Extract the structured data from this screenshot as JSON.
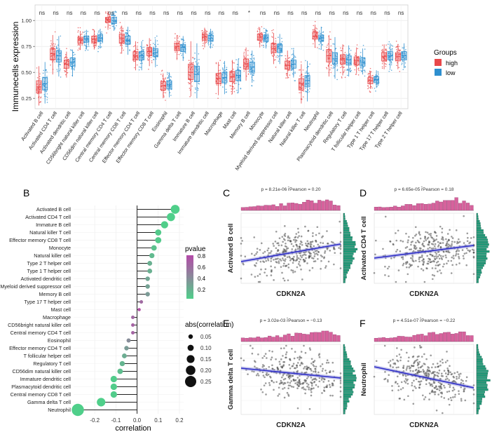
{
  "panel_labels": [
    "A",
    "B",
    "C",
    "D",
    "E",
    "F"
  ],
  "colors": {
    "high": "#e8484a",
    "low": "#2e8fcf",
    "trend": "#2b2bc8",
    "hist_top": "#d6629c",
    "hist_side": "#1f9a78",
    "point": "#4a4a4a"
  },
  "chart_data": [
    {
      "id": "A",
      "type": "box",
      "ylabel": "Immunecells expression",
      "ylim": [
        0.15,
        1.15
      ],
      "yticks": [
        0.25,
        0.5,
        0.75,
        1.0
      ],
      "ytick_labels": [
        "0.25",
        "0.50",
        "0.75",
        "1.00"
      ],
      "grid": true,
      "legend": {
        "title": "Groups",
        "entries": [
          "high",
          "low"
        ],
        "placement": "right"
      },
      "categories": [
        "Activated B cell",
        "Activated CD4 T cell",
        "Activated dendritic cell",
        "CD56bright natural killer cell",
        "CD56dim natural killer cell",
        "Central memory CD4 T cell",
        "Central memory CD8 T cell",
        "Effector memory CD4 T cell",
        "Effector memory CD8 T cell",
        "Eosinophil",
        "Gamma delta T cell",
        "Immature B cell",
        "Immature dendritic cell",
        "Macrophage",
        "Mast cell",
        "Memory B cell",
        "Monocyte",
        "Myeloid derived suppressor cell",
        "Natural killer cell",
        "Natural killer T cell",
        "Neutrophil",
        "Plasmacytoid dendritic cell",
        "Regulatory T cell",
        "T follicular helper cell",
        "Type 1 T helper cell",
        "Type 17 T helper cell",
        "Type 2 T helper cell"
      ],
      "significance": [
        "ns",
        "ns",
        "ns",
        "ns",
        "ns",
        "ns",
        "ns",
        "ns",
        "ns",
        "ns",
        "ns",
        "ns",
        "ns",
        "ns",
        "ns",
        "*",
        "ns",
        "ns",
        "ns",
        "ns",
        "ns",
        "ns",
        "ns",
        "ns",
        "ns",
        "ns",
        "ns"
      ],
      "series": [
        {
          "name": "high",
          "medians": [
            0.36,
            0.68,
            0.58,
            0.81,
            0.82,
            1.01,
            0.83,
            0.66,
            0.7,
            0.37,
            0.75,
            0.5,
            0.84,
            0.44,
            0.46,
            0.58,
            0.84,
            0.73,
            0.57,
            0.39,
            0.85,
            0.66,
            0.63,
            0.61,
            0.42,
            0.65,
            0.65
          ],
          "q1": [
            0.3,
            0.62,
            0.54,
            0.78,
            0.79,
            0.98,
            0.78,
            0.62,
            0.66,
            0.33,
            0.71,
            0.43,
            0.81,
            0.39,
            0.41,
            0.53,
            0.81,
            0.69,
            0.53,
            0.33,
            0.82,
            0.6,
            0.58,
            0.57,
            0.39,
            0.61,
            0.61
          ],
          "q3": [
            0.42,
            0.73,
            0.62,
            0.84,
            0.85,
            1.03,
            0.87,
            0.7,
            0.74,
            0.41,
            0.78,
            0.58,
            0.87,
            0.49,
            0.51,
            0.63,
            0.87,
            0.78,
            0.61,
            0.44,
            0.89,
            0.72,
            0.67,
            0.65,
            0.45,
            0.69,
            0.69
          ],
          "whisker_low": [
            0.18,
            0.48,
            0.45,
            0.72,
            0.72,
            0.91,
            0.68,
            0.52,
            0.56,
            0.25,
            0.62,
            0.27,
            0.74,
            0.28,
            0.29,
            0.42,
            0.74,
            0.58,
            0.44,
            0.2,
            0.74,
            0.46,
            0.47,
            0.49,
            0.34,
            0.53,
            0.53
          ],
          "whisker_high": [
            0.56,
            0.86,
            0.7,
            0.9,
            0.91,
            1.09,
            0.95,
            0.8,
            0.83,
            0.49,
            0.86,
            0.8,
            0.93,
            0.6,
            0.62,
            0.74,
            0.93,
            0.88,
            0.71,
            0.58,
            0.96,
            0.86,
            0.77,
            0.74,
            0.51,
            0.77,
            0.77
          ]
        },
        {
          "name": "low",
          "medians": [
            0.39,
            0.66,
            0.6,
            0.82,
            0.83,
            1.0,
            0.81,
            0.66,
            0.69,
            0.38,
            0.74,
            0.48,
            0.83,
            0.45,
            0.47,
            0.55,
            0.83,
            0.73,
            0.58,
            0.42,
            0.83,
            0.63,
            0.62,
            0.6,
            0.43,
            0.66,
            0.66
          ],
          "q1": [
            0.33,
            0.6,
            0.56,
            0.79,
            0.8,
            0.97,
            0.77,
            0.62,
            0.65,
            0.34,
            0.7,
            0.41,
            0.8,
            0.4,
            0.42,
            0.5,
            0.8,
            0.69,
            0.54,
            0.36,
            0.8,
            0.58,
            0.57,
            0.56,
            0.4,
            0.62,
            0.62
          ],
          "q3": [
            0.45,
            0.71,
            0.64,
            0.85,
            0.86,
            1.03,
            0.85,
            0.7,
            0.73,
            0.42,
            0.77,
            0.56,
            0.86,
            0.5,
            0.52,
            0.6,
            0.86,
            0.77,
            0.62,
            0.47,
            0.86,
            0.69,
            0.66,
            0.64,
            0.46,
            0.7,
            0.7
          ],
          "whisker_low": [
            0.2,
            0.46,
            0.46,
            0.72,
            0.73,
            0.9,
            0.67,
            0.52,
            0.55,
            0.26,
            0.61,
            0.25,
            0.73,
            0.29,
            0.3,
            0.4,
            0.73,
            0.58,
            0.45,
            0.22,
            0.72,
            0.44,
            0.46,
            0.48,
            0.35,
            0.54,
            0.54
          ],
          "whisker_high": [
            0.6,
            0.85,
            0.72,
            0.91,
            0.92,
            1.09,
            0.94,
            0.8,
            0.82,
            0.5,
            0.85,
            0.78,
            0.92,
            0.61,
            0.63,
            0.71,
            0.92,
            0.87,
            0.72,
            0.61,
            0.94,
            0.84,
            0.76,
            0.73,
            0.52,
            0.78,
            0.78
          ]
        }
      ]
    },
    {
      "id": "B",
      "type": "lollipop",
      "xlabel": "correlation",
      "xlim": [
        -0.3,
        0.22
      ],
      "xticks": [
        -0.2,
        -0.1,
        0.0,
        0.1,
        0.2
      ],
      "xtick_labels": [
        "-0.2",
        "-0.1",
        "0.0",
        "0.1",
        "0.2"
      ],
      "categories": [
        "Activated B cell",
        "Activated CD4 T cell",
        "Immature  B cell",
        "Natural killer T cell",
        "Effector memory CD8 T cell",
        "Monocyte",
        "Natural killer cell",
        "Type 2 T helper cell",
        "Type 1 T helper cell",
        "Activated dendritic cell",
        "Myeloid derived suppressor cell",
        "Memory B cell",
        "Type 17 T helper cell",
        "Mast cell",
        "Macrophage",
        "CD56bright natural killer cell",
        "Central memory CD4 T cell",
        "Eosinophil",
        "Effector memory CD4 T cell",
        "T follicular helper cell",
        "Regulatory T cell",
        "CD56dim natural killer cell",
        "Immature dendritic cell",
        "Plasmacytoid dendritic cell",
        "Central memory CD8 T cell",
        "Gamma delta T cell",
        "Neutrophil"
      ],
      "values": [
        0.18,
        0.16,
        0.13,
        0.1,
        0.1,
        0.08,
        0.07,
        0.06,
        0.06,
        0.05,
        0.05,
        0.05,
        0.02,
        0.01,
        -0.02,
        -0.02,
        -0.02,
        -0.04,
        -0.05,
        -0.06,
        -0.07,
        -0.08,
        -0.11,
        -0.11,
        -0.11,
        -0.17,
        -0.28
      ],
      "pvalues": [
        0.0,
        0.0,
        0.005,
        0.03,
        0.03,
        0.08,
        0.12,
        0.18,
        0.18,
        0.24,
        0.26,
        0.3,
        0.6,
        0.78,
        0.62,
        0.65,
        0.64,
        0.38,
        0.3,
        0.2,
        0.15,
        0.1,
        0.02,
        0.02,
        0.02,
        0.0,
        0.0
      ],
      "legend_pvalue": {
        "title": "pvalue",
        "ticks": [
          0.8,
          0.6,
          0.4,
          0.2
        ],
        "tick_labels": [
          "0.8",
          "0.6",
          "0.4",
          "0.2"
        ]
      },
      "legend_size": {
        "title": "abs(correlation)",
        "values": [
          0.05,
          0.1,
          0.15,
          0.2,
          0.25
        ],
        "labels": [
          "0.05",
          "0.10",
          "0.15",
          "0.20",
          "0.25"
        ]
      }
    },
    {
      "id": "C",
      "type": "scatter",
      "xlabel": "CDKN2A",
      "ylabel": "Activated B cell",
      "stats": {
        "p": "p = 8.21e-06",
        "r": "r̂Pearson = 0.20"
      },
      "r": 0.2,
      "slope": 0.25,
      "intercept": 0.31,
      "n": 330
    },
    {
      "id": "D",
      "type": "scatter",
      "xlabel": "CDKN2A",
      "ylabel": "Activated CD4 T cell",
      "stats": {
        "p": "p = 6.65e-05",
        "r": "r̂Pearson = 0.18"
      },
      "r": 0.18,
      "slope": 0.18,
      "intercept": 0.36,
      "n": 330
    },
    {
      "id": "E",
      "type": "scatter",
      "xlabel": "CDKN2A",
      "ylabel": "Gamma delta T cell",
      "stats": {
        "p": "p = 3.02e-03",
        "r": "r̂Pearson = −0.13"
      },
      "r": -0.13,
      "slope": -0.14,
      "intercept": 0.66,
      "n": 330
    },
    {
      "id": "F",
      "type": "scatter",
      "xlabel": "CDKN2A",
      "ylabel": "Neutrophil",
      "stats": {
        "p": "p = 4.51e-07",
        "r": "r̂Pearson = −0.22"
      },
      "r": -0.22,
      "slope": -0.3,
      "intercept": 0.68,
      "n": 330
    }
  ]
}
